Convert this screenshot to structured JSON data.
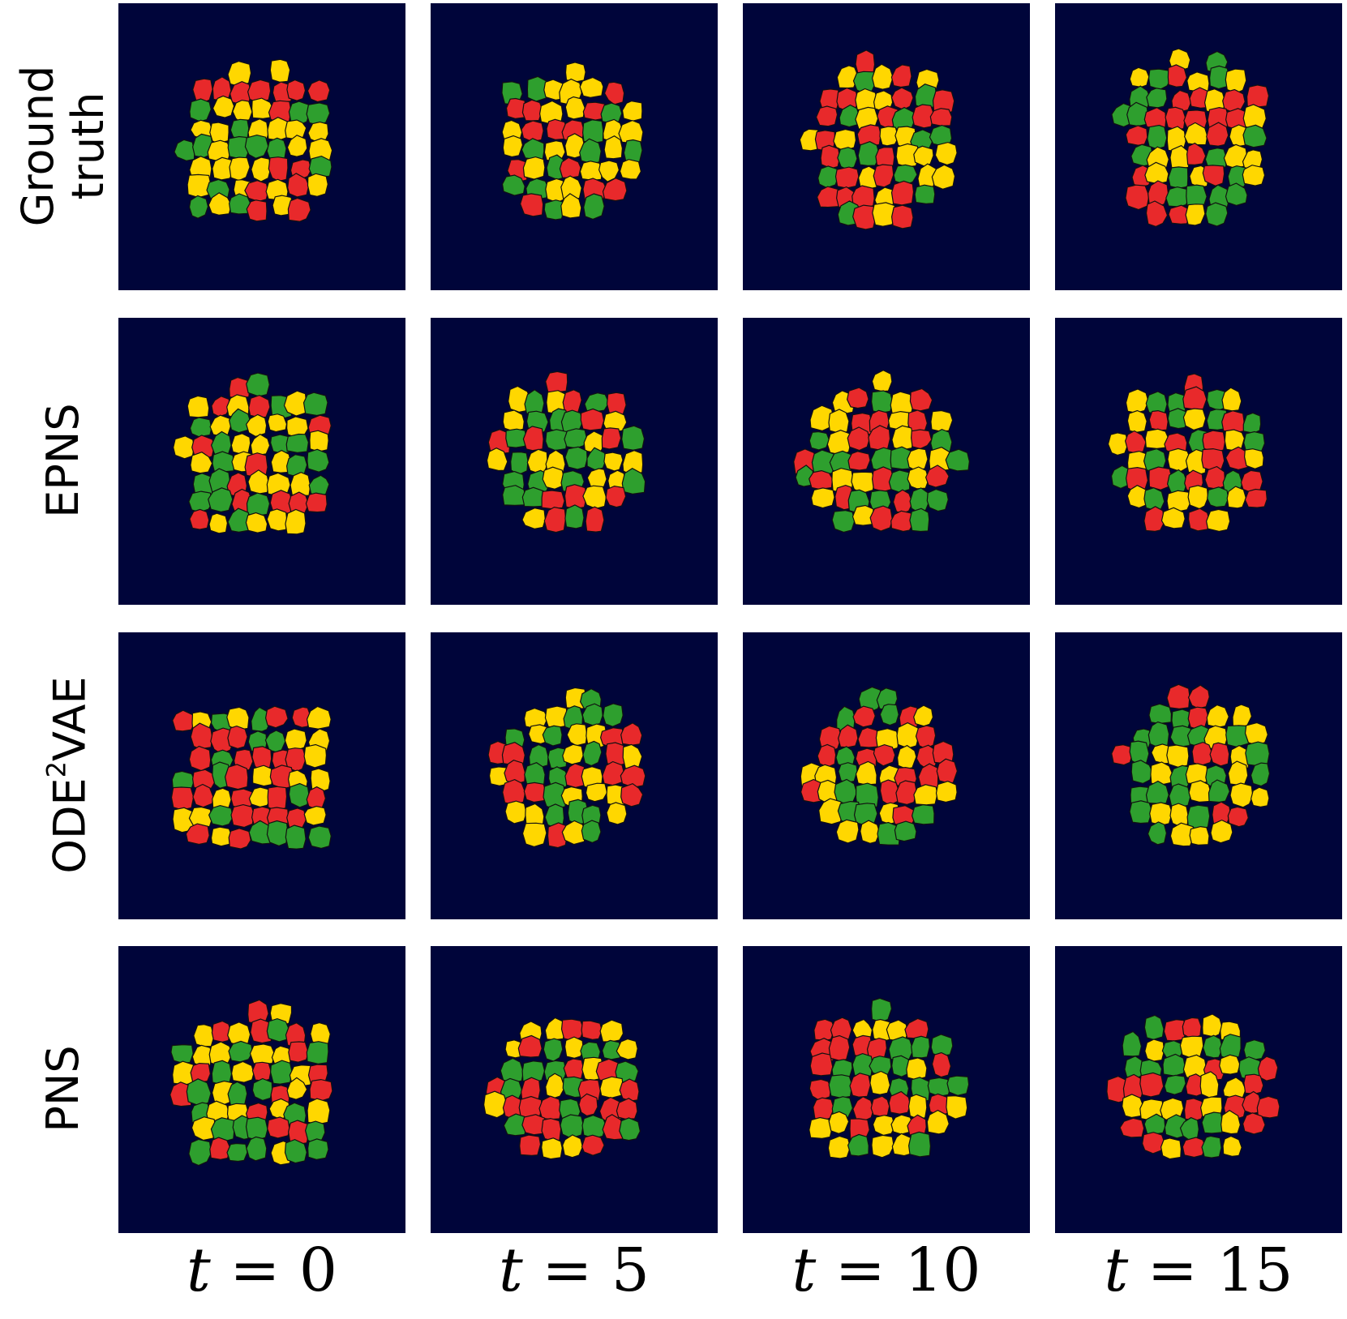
{
  "rows": [
    {
      "label_lines": [
        "Ground",
        "truth"
      ]
    },
    {
      "label": "EPNS"
    },
    {
      "label": "ODE",
      "label_sup": "2",
      "label_suffix": "VAE"
    },
    {
      "label": "PNS"
    }
  ],
  "columns": [
    {
      "var": "t",
      "op": "=",
      "value": "0"
    },
    {
      "var": "t",
      "op": "=",
      "value": "5"
    },
    {
      "var": "t",
      "op": "=",
      "value": "10"
    },
    {
      "var": "t",
      "op": "=",
      "value": "15"
    }
  ],
  "colors": {
    "panel_background": "#00053a",
    "cell_types": [
      "#e8292b",
      "#ffd700",
      "#2e9f2e"
    ],
    "cell_border": "#111111"
  }
}
